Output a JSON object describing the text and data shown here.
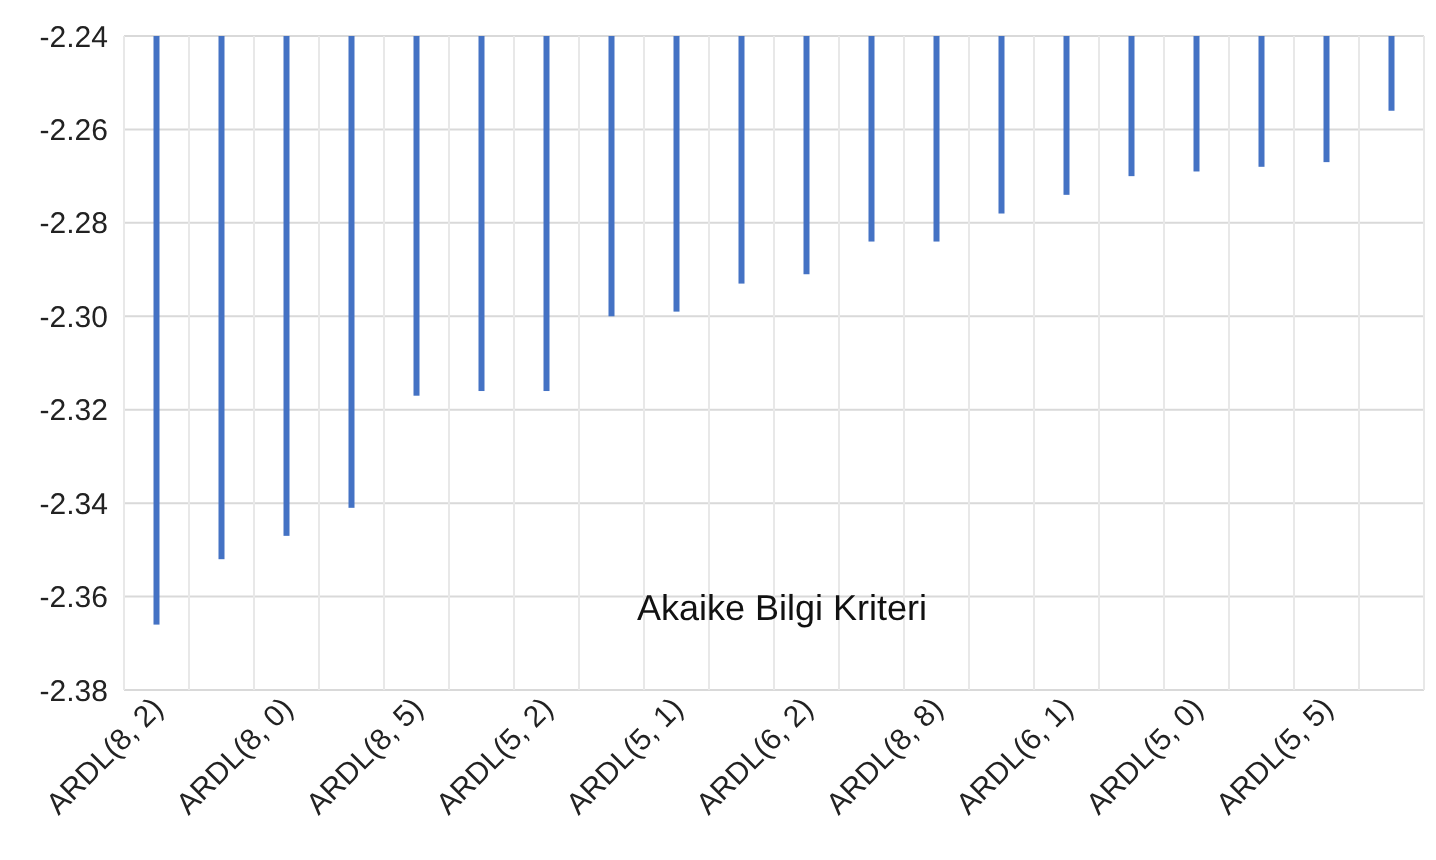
{
  "chart_data": {
    "type": "bar",
    "title": "Akaike Bilgi Kriteri",
    "categories": [
      "ARDL(8, 2)",
      null,
      "ARDL(8, 0)",
      null,
      "ARDL(8, 5)",
      null,
      "ARDL(5, 2)",
      null,
      "ARDL(5, 1)",
      null,
      "ARDL(6, 2)",
      null,
      "ARDL(8, 8)",
      null,
      "ARDL(6, 1)",
      null,
      "ARDL(5, 0)",
      null,
      "ARDL(5, 5)",
      null
    ],
    "values": [
      -2.366,
      -2.352,
      -2.347,
      -2.341,
      -2.317,
      -2.316,
      -2.316,
      -2.3,
      -2.299,
      -2.293,
      -2.291,
      -2.284,
      -2.284,
      -2.278,
      -2.274,
      -2.27,
      -2.269,
      -2.268,
      -2.267,
      -2.256
    ],
    "color": "#4472c4",
    "ylim": [
      -2.38,
      -2.24
    ],
    "yticks": [
      {
        "value": -2.38,
        "label": "-2.38"
      },
      {
        "value": -2.36,
        "label": "-2.36"
      },
      {
        "value": -2.34,
        "label": "-2.34"
      },
      {
        "value": -2.32,
        "label": "-2.32"
      },
      {
        "value": -2.3,
        "label": "-2.30"
      },
      {
        "value": -2.28,
        "label": "-2.28"
      },
      {
        "value": -2.26,
        "label": "-2.26"
      },
      {
        "value": -2.24,
        "label": "-2.24"
      }
    ],
    "grid": true
  }
}
